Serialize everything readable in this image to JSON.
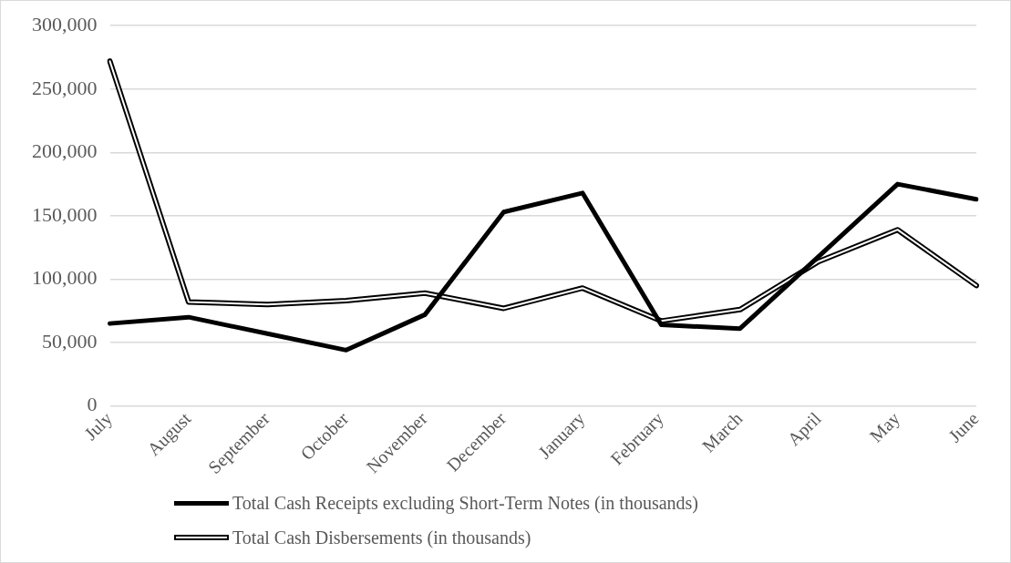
{
  "chart_data": {
    "type": "line",
    "categories": [
      "July",
      "August",
      "September",
      "October",
      "November",
      "December",
      "January",
      "February",
      "March",
      "April",
      "May",
      "June"
    ],
    "series": [
      {
        "name": "Total Cash Receipts excluding Short-Term Notes (in thousands)",
        "color": "#000000",
        "values": [
          65000,
          70000,
          57000,
          44000,
          72000,
          153000,
          168000,
          64000,
          61000,
          118000,
          175000,
          163000
        ]
      },
      {
        "name": "Total Cash Disbersements (in thousands)",
        "color": "#000000",
        "values": [
          272000,
          82000,
          80000,
          83000,
          89000,
          77000,
          93000,
          67000,
          76000,
          114000,
          139000,
          95000
        ]
      }
    ],
    "ylim": [
      0,
      300000
    ],
    "yticks": [
      0,
      {
        "value": 50000,
        "label": "50,000"
      },
      {
        "value": 100000,
        "label": "100,000"
      },
      {
        "value": 150000,
        "label": "150,000"
      },
      {
        "value": 200000,
        "label": "200,000"
      },
      {
        "value": 250000,
        "label": "250,000"
      },
      {
        "value": 300000,
        "label": "300,000"
      }
    ],
    "grid": "y",
    "legend": "bottom",
    "marker": "none",
    "line_style": "solid"
  }
}
